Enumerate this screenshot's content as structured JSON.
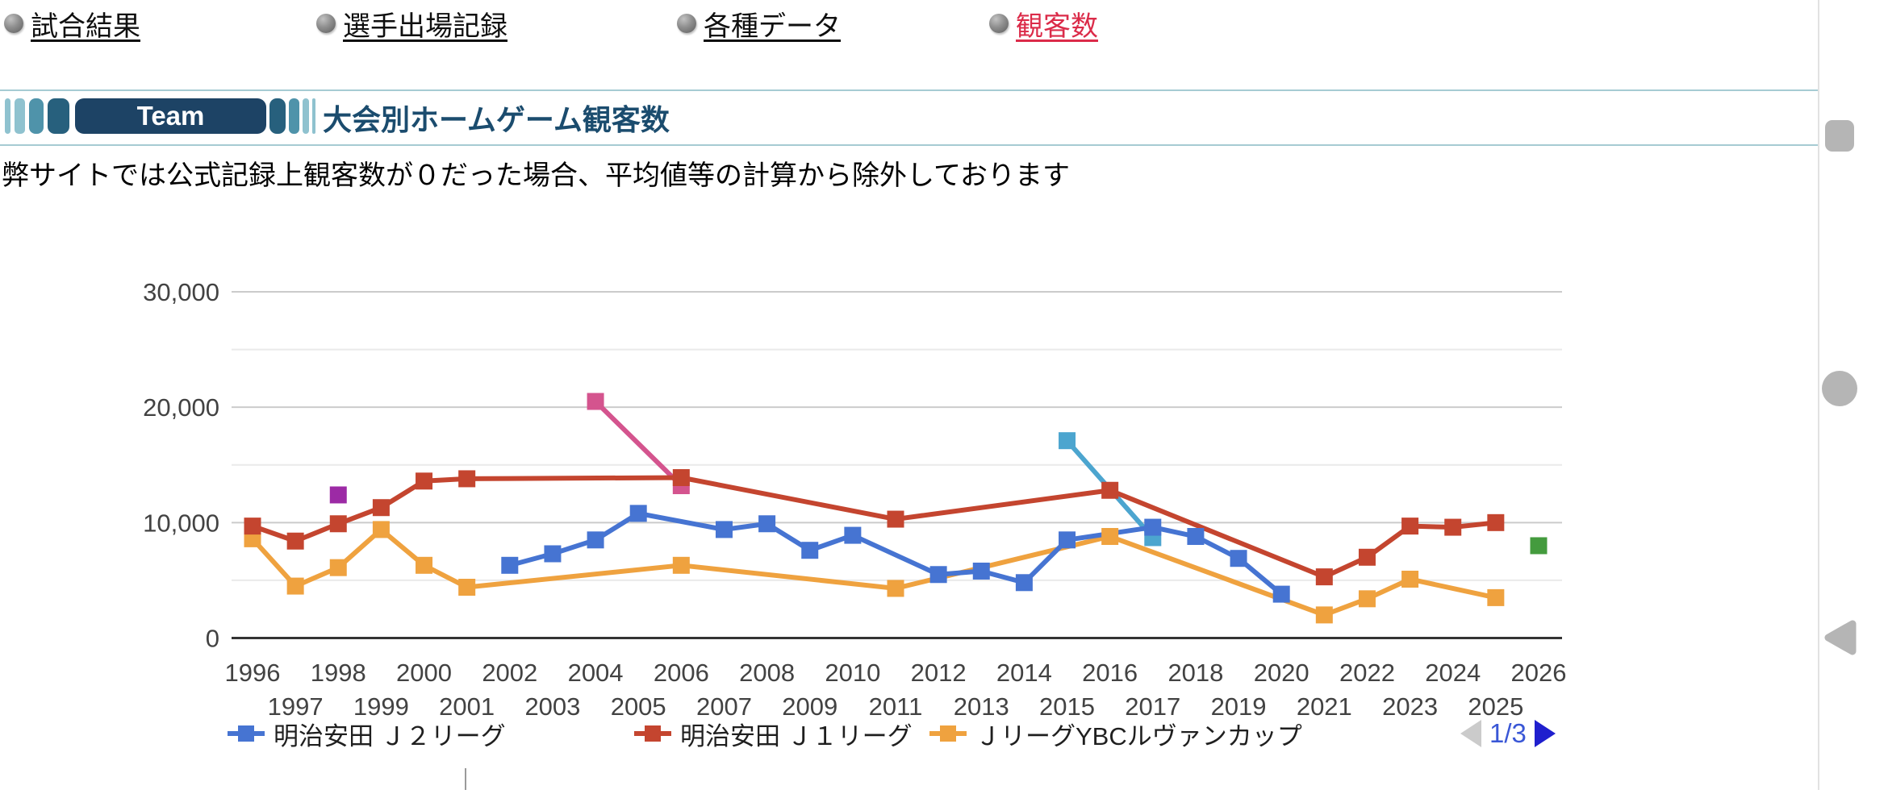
{
  "nav": {
    "items": [
      {
        "label": "試合結果",
        "active": false
      },
      {
        "label": "選手出場記録",
        "active": false
      },
      {
        "label": "各種データ",
        "active": false
      },
      {
        "label": "観客数",
        "active": true,
        "active_color": "#db2b49"
      }
    ]
  },
  "header": {
    "team_badge_label": "Team",
    "title": "大会別ホームゲーム観客数",
    "badge_color": "#1d4365",
    "accent_colors": [
      "#8fc2cf",
      "#4f93aa",
      "#27607d"
    ]
  },
  "note": "弊サイトでは公式記録上観客数が０だった場合、平均値等の計算から除外しております",
  "chart_data": {
    "type": "line",
    "title": "大会別ホームゲーム観客数",
    "grid": true,
    "x_axis": {
      "min": 1996,
      "max": 2026,
      "tick_labels_top_row": [
        "1996",
        "1998",
        "2000",
        "2002",
        "2004",
        "2006",
        "2008",
        "2010",
        "2012",
        "2014",
        "2016",
        "2018",
        "2020",
        "2022",
        "2024",
        "2026"
      ],
      "tick_labels_bottom_row": [
        "1997",
        "1999",
        "2001",
        "2003",
        "2005",
        "2007",
        "2009",
        "2011",
        "2013",
        "2015",
        "2017",
        "2019",
        "2021",
        "2023",
        "2025"
      ]
    },
    "y_axis": {
      "min": 0,
      "max": 30000,
      "tick_labels": [
        "30,000",
        "20,000",
        "10,000",
        "0"
      ],
      "major_gridlines": [
        10000,
        20000,
        30000
      ],
      "minor_gridlines": [
        5000,
        15000,
        25000
      ]
    },
    "series": [
      {
        "name": "明治安田 Ｊ２リーグ",
        "color": "#4674d2",
        "in_legend": true,
        "data": [
          [
            2002,
            6300
          ],
          [
            2003,
            7300
          ],
          [
            2004,
            8500
          ],
          [
            2005,
            10800
          ],
          [
            2007,
            9400
          ],
          [
            2008,
            9900
          ],
          [
            2009,
            7600
          ],
          [
            2010,
            8900
          ],
          [
            2012,
            5500
          ],
          [
            2013,
            5800
          ],
          [
            2014,
            4800
          ],
          [
            2015,
            8500
          ],
          [
            2017,
            9600
          ],
          [
            2018,
            8800
          ],
          [
            2019,
            6900
          ],
          [
            2020,
            3800
          ]
        ]
      },
      {
        "name": "明治安田 Ｊ１リーグ",
        "color": "#c4452f",
        "in_legend": true,
        "data": [
          [
            1996,
            9700
          ],
          [
            1997,
            8400
          ],
          [
            1998,
            9900
          ],
          [
            1999,
            11300
          ],
          [
            2000,
            13600
          ],
          [
            2001,
            13800
          ],
          [
            2006,
            13900
          ],
          [
            2011,
            10300
          ],
          [
            2016,
            12800
          ],
          [
            2021,
            5300
          ],
          [
            2022,
            7000
          ],
          [
            2023,
            9700
          ],
          [
            2024,
            9600
          ],
          [
            2025,
            10000
          ]
        ]
      },
      {
        "name": "ＪリーグYBCルヴァンカップ",
        "color": "#efa23f",
        "in_legend": true,
        "data": [
          [
            1996,
            8600
          ],
          [
            1997,
            4500
          ],
          [
            1998,
            6100
          ],
          [
            1999,
            9400
          ],
          [
            2000,
            6300
          ],
          [
            2001,
            4400
          ],
          [
            2006,
            6300
          ],
          [
            2011,
            4300
          ],
          [
            2016,
            8800
          ],
          [
            2021,
            2000
          ],
          [
            2022,
            3400
          ],
          [
            2023,
            5100
          ],
          [
            2025,
            3500
          ]
        ]
      },
      {
        "name": "unlabeled-pink-series",
        "color": "#d4548e",
        "in_legend": false,
        "data": [
          [
            2004,
            20500
          ],
          [
            2006,
            13200
          ]
        ]
      },
      {
        "name": "unlabeled-purple-series",
        "color": "#9c2aa5",
        "in_legend": false,
        "data": [
          [
            1998,
            12400
          ]
        ]
      },
      {
        "name": "unlabeled-lightblue-series",
        "color": "#4ca5cf",
        "in_legend": false,
        "data": [
          [
            2015,
            17100
          ],
          [
            2017,
            8700
          ]
        ]
      },
      {
        "name": "unlabeled-green-series",
        "color": "#449b3e",
        "in_legend": false,
        "data": [
          [
            2026,
            8000
          ]
        ]
      }
    ],
    "legend": {
      "position": "bottom",
      "items": [
        {
          "label": "明治安田 Ｊ２リーグ",
          "color": "#4674d2"
        },
        {
          "label": "明治安田 Ｊ１リーグ",
          "color": "#c4452f"
        },
        {
          "label": "ＪリーグYBCルヴァンカップ",
          "color": "#efa23f"
        }
      ],
      "pagination": {
        "current_page_label": "1/3"
      }
    }
  }
}
